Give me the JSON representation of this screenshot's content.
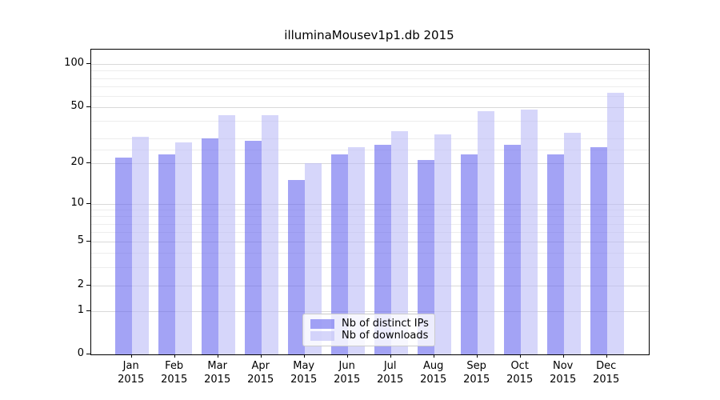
{
  "chart_data": {
    "type": "bar",
    "title": "illuminaMousev1p1.db 2015",
    "categories": [
      "Jan 2015",
      "Feb 2015",
      "Mar 2015",
      "Apr 2015",
      "May 2015",
      "Jun 2015",
      "Jul 2015",
      "Aug 2015",
      "Sep 2015",
      "Oct 2015",
      "Nov 2015",
      "Dec 2015"
    ],
    "series": [
      {
        "name": "Nb of distinct IPs",
        "color": "#6666ee",
        "opacity": 0.6,
        "values": [
          22,
          23,
          30,
          29,
          15,
          23,
          27,
          21,
          23,
          27,
          23,
          26
        ]
      },
      {
        "name": "Nb of downloads",
        "color": "#bbbbf6",
        "opacity": 0.6,
        "values": [
          31,
          28,
          44,
          44,
          20,
          26,
          34,
          32,
          47,
          48,
          33,
          63
        ]
      }
    ],
    "y_axis": {
      "scale": "log1p",
      "ticks": [
        0,
        1,
        2,
        5,
        10,
        20,
        50,
        100
      ],
      "minor_gridlines": [
        3,
        4,
        6,
        7,
        8,
        9,
        25,
        30,
        40,
        60,
        70,
        80,
        90
      ],
      "max": 130
    },
    "legend": {
      "position": "lower center"
    },
    "grid": true,
    "colors": {
      "grid_major": "#d9d9d9",
      "grid_minor": "#ededed",
      "axis": "#000000",
      "background": "#ffffff"
    }
  }
}
